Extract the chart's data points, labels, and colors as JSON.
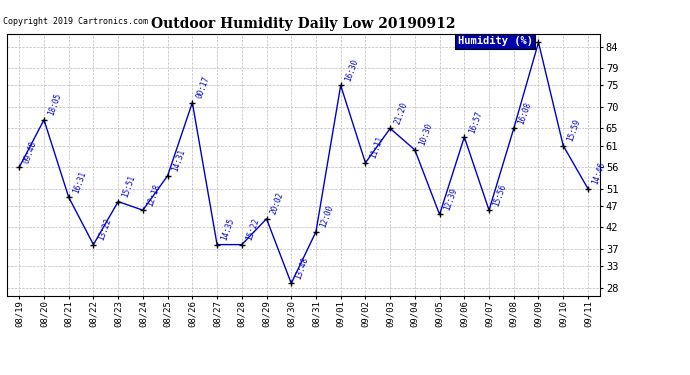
{
  "title": "Outdoor Humidity Daily Low 20190912",
  "copyright": "Copyright 2019 Cartronics.com",
  "legend_label": "Humidity (%)",
  "x_labels": [
    "08/19",
    "08/20",
    "08/21",
    "08/22",
    "08/23",
    "08/24",
    "08/25",
    "08/26",
    "08/27",
    "08/28",
    "08/29",
    "08/30",
    "08/31",
    "09/01",
    "09/02",
    "09/03",
    "09/04",
    "09/05",
    "09/06",
    "09/07",
    "09/08",
    "09/09",
    "09/10",
    "09/11"
  ],
  "y_values": [
    56,
    67,
    49,
    38,
    48,
    46,
    54,
    71,
    38,
    38,
    44,
    29,
    41,
    75,
    57,
    65,
    60,
    45,
    63,
    46,
    65,
    85,
    61,
    51
  ],
  "point_labels": [
    "09:48",
    "18:05",
    "16:31",
    "13:22",
    "15:51",
    "12:18",
    "14:31",
    "00:17",
    "14:35",
    "15:22",
    "20:02",
    "13:48",
    "12:00",
    "16:30",
    "11:11",
    "21:20",
    "10:30",
    "12:39",
    "16:57",
    "15:56",
    "16:08",
    "",
    "15:59",
    "14:46"
  ],
  "ylim_min": 26,
  "ylim_max": 87,
  "yticks": [
    28,
    33,
    37,
    42,
    47,
    51,
    56,
    61,
    65,
    70,
    75,
    79,
    84
  ],
  "line_color": "#0000cc",
  "marker_color": "#000000",
  "bg_color": "#ffffff",
  "grid_color": "#bbbbbb",
  "label_color": "#0000cc",
  "title_color": "#000000",
  "copyright_color": "#000000",
  "legend_bg": "#0000aa",
  "legend_text": "#ffffff"
}
